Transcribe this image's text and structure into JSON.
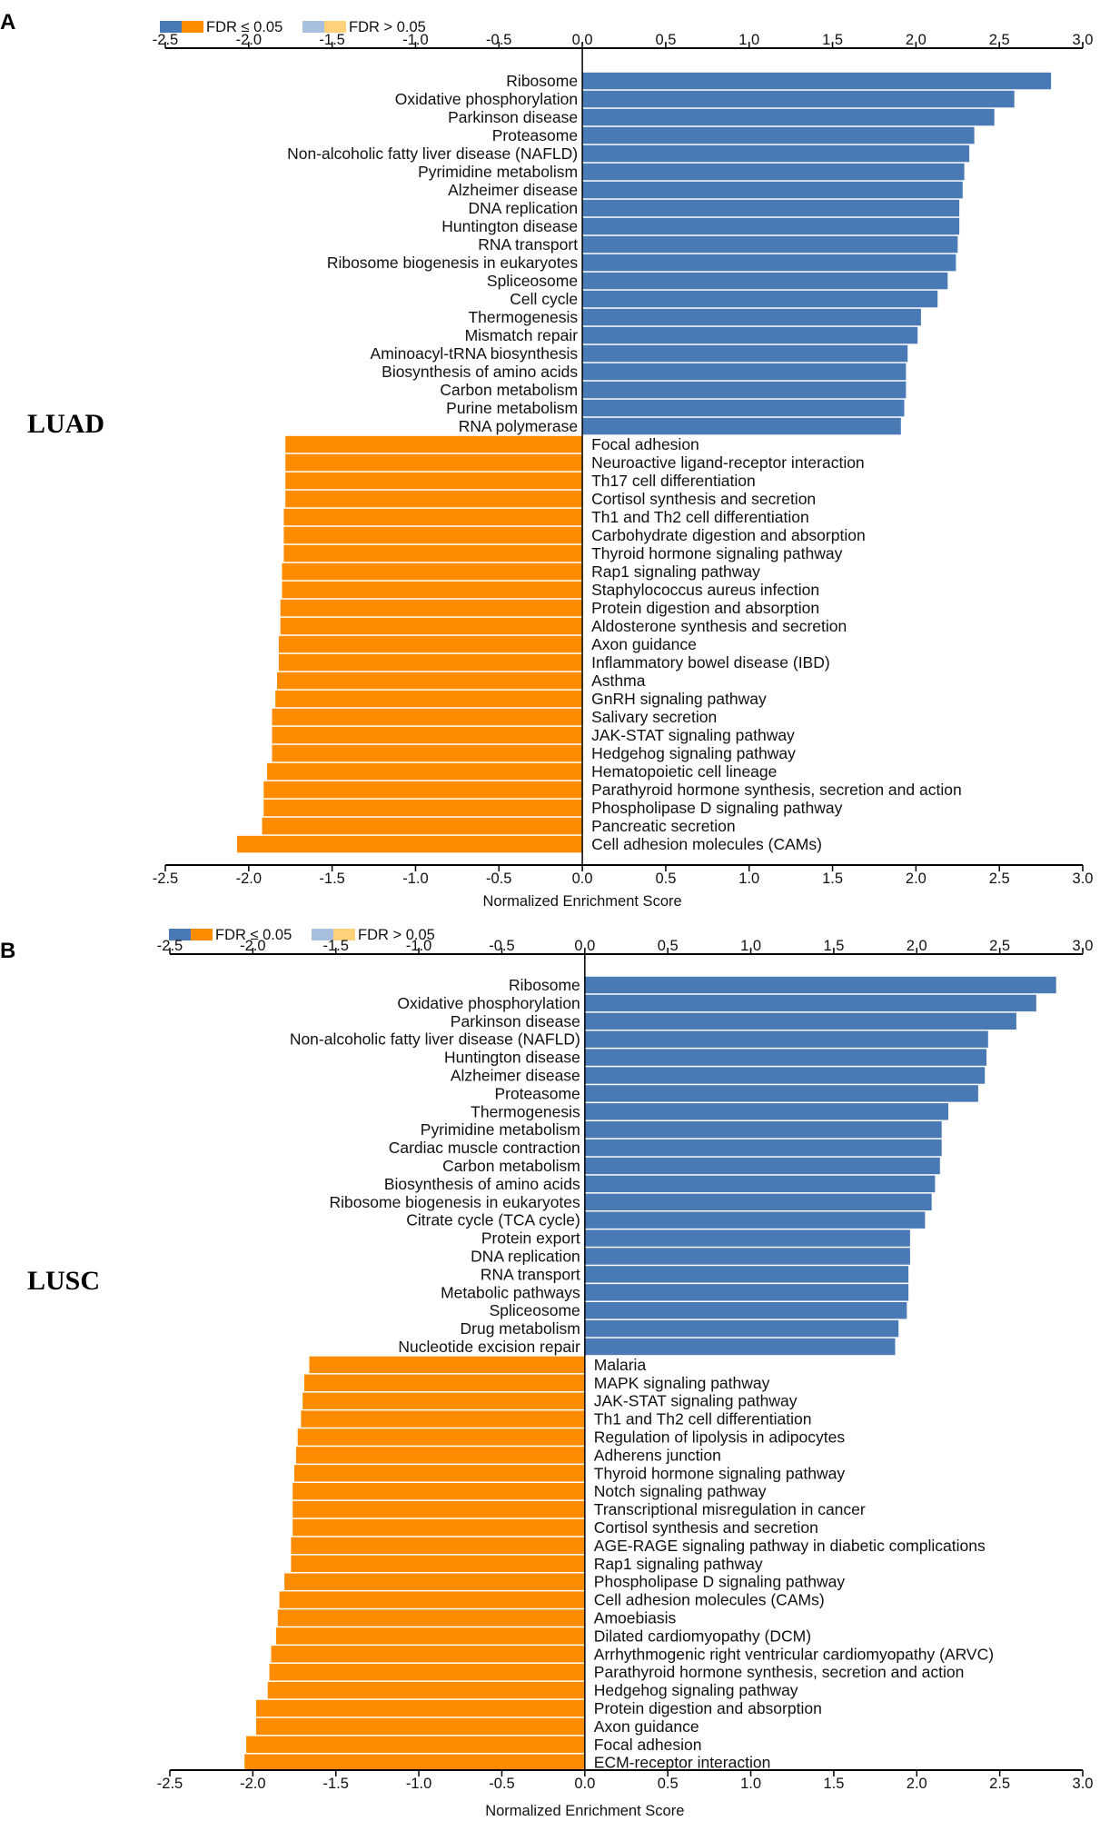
{
  "colors": {
    "pos_sig": "#4a7ab5",
    "neg_sig": "#ff8c00",
    "pos_ns": "#a9bfe0",
    "neg_ns": "#ffd27a"
  },
  "legend": {
    "sig_label": "FDR ≤ 0.05",
    "ns_label": "FDR > 0.05"
  },
  "axis_ticks": [
    "-2.5",
    "-2.0",
    "-1.5",
    "-1.0",
    "-0.5",
    "0.0",
    "0.5",
    "1.0",
    "1.5",
    "2.0",
    "2.5",
    "3.0"
  ],
  "chart_data": [
    {
      "type": "bar",
      "orientation": "horizontal",
      "panel_label": "A",
      "side_label": "LUAD",
      "xlabel": "Normalized Enrichment Score",
      "xlim": [
        -2.5,
        3.0
      ],
      "categories": [
        "Ribosome",
        "Oxidative phosphorylation",
        "Parkinson disease",
        "Proteasome",
        "Non-alcoholic fatty liver disease (NAFLD)",
        "Pyrimidine metabolism",
        "Alzheimer disease",
        "DNA replication",
        "Huntington disease",
        "RNA transport",
        "Ribosome biogenesis in eukaryotes",
        "Spliceosome",
        "Cell cycle",
        "Thermogenesis",
        "Mismatch repair",
        "Aminoacyl-tRNA biosynthesis",
        "Biosynthesis of amino acids",
        "Carbon metabolism",
        "Purine metabolism",
        "RNA polymerase",
        "Focal adhesion",
        "Neuroactive ligand-receptor interaction",
        "Th17 cell differentiation",
        "Cortisol synthesis and secretion",
        "Th1 and Th2 cell differentiation",
        "Carbohydrate digestion and absorption",
        "Thyroid hormone signaling pathway",
        "Rap1 signaling pathway",
        "Staphylococcus aureus infection",
        "Protein digestion and absorption",
        "Aldosterone synthesis and secretion",
        "Axon guidance",
        "Inflammatory bowel disease (IBD)",
        "Asthma",
        "GnRH signaling pathway",
        "Salivary secretion",
        "JAK-STAT signaling pathway",
        "Hedgehog signaling pathway",
        "Hematopoietic cell lineage",
        "Parathyroid hormone synthesis, secretion and action",
        "Phospholipase D signaling pathway",
        "Pancreatic secretion",
        "Cell adhesion molecules (CAMs)"
      ],
      "values": [
        2.81,
        2.59,
        2.47,
        2.35,
        2.32,
        2.29,
        2.28,
        2.26,
        2.26,
        2.25,
        2.24,
        2.19,
        2.13,
        2.03,
        2.01,
        1.95,
        1.94,
        1.94,
        1.93,
        1.91,
        -1.78,
        -1.78,
        -1.78,
        -1.78,
        -1.79,
        -1.79,
        -1.79,
        -1.8,
        -1.8,
        -1.81,
        -1.81,
        -1.82,
        -1.82,
        -1.83,
        -1.84,
        -1.86,
        -1.86,
        -1.86,
        -1.89,
        -1.91,
        -1.91,
        -1.92,
        -2.07
      ],
      "significant": "all"
    },
    {
      "type": "bar",
      "orientation": "horizontal",
      "panel_label": "B",
      "side_label": "LUSC",
      "xlabel": "Normalized Enrichment Score",
      "xlim": [
        -2.5,
        3.0
      ],
      "categories": [
        "Ribosome",
        "Oxidative phosphorylation",
        "Parkinson disease",
        "Non-alcoholic fatty liver disease (NAFLD)",
        "Huntington disease",
        "Alzheimer disease",
        "Proteasome",
        "Thermogenesis",
        "Pyrimidine metabolism",
        "Cardiac muscle contraction",
        "Carbon metabolism",
        "Biosynthesis of amino acids",
        "Ribosome biogenesis in eukaryotes",
        "Citrate cycle (TCA cycle)",
        "Protein export",
        "DNA replication",
        "RNA transport",
        "Metabolic pathways",
        "Spliceosome",
        "Drug metabolism",
        "Nucleotide excision repair",
        "Malaria",
        "MAPK signaling pathway",
        "JAK-STAT signaling pathway",
        "Th1 and Th2 cell differentiation",
        "Regulation of lipolysis in adipocytes",
        "Adherens junction",
        "Thyroid hormone signaling pathway",
        "Notch signaling pathway",
        "Transcriptional misregulation in cancer",
        "Cortisol synthesis and secretion",
        "AGE-RAGE signaling pathway in diabetic complications",
        "Rap1 signaling pathway",
        "Phospholipase D signaling pathway",
        "Cell adhesion molecules (CAMs)",
        "Amoebiasis",
        "Dilated cardiomyopathy (DCM)",
        "Arrhythmogenic right ventricular cardiomyopathy (ARVC)",
        "Parathyroid hormone synthesis, secretion and action",
        "Hedgehog signaling pathway",
        "Protein digestion and absorption",
        "Axon guidance",
        "Focal adhesion",
        "ECM-receptor interaction"
      ],
      "values": [
        2.84,
        2.72,
        2.6,
        2.43,
        2.42,
        2.41,
        2.37,
        2.19,
        2.15,
        2.15,
        2.14,
        2.11,
        2.09,
        2.05,
        1.96,
        1.96,
        1.95,
        1.95,
        1.94,
        1.89,
        1.87,
        -1.66,
        -1.69,
        -1.7,
        -1.71,
        -1.73,
        -1.74,
        -1.75,
        -1.76,
        -1.76,
        -1.76,
        -1.77,
        -1.77,
        -1.81,
        -1.84,
        -1.85,
        -1.86,
        -1.89,
        -1.9,
        -1.91,
        -1.98,
        -1.98,
        -2.04,
        -2.05
      ],
      "significant": "all"
    }
  ]
}
